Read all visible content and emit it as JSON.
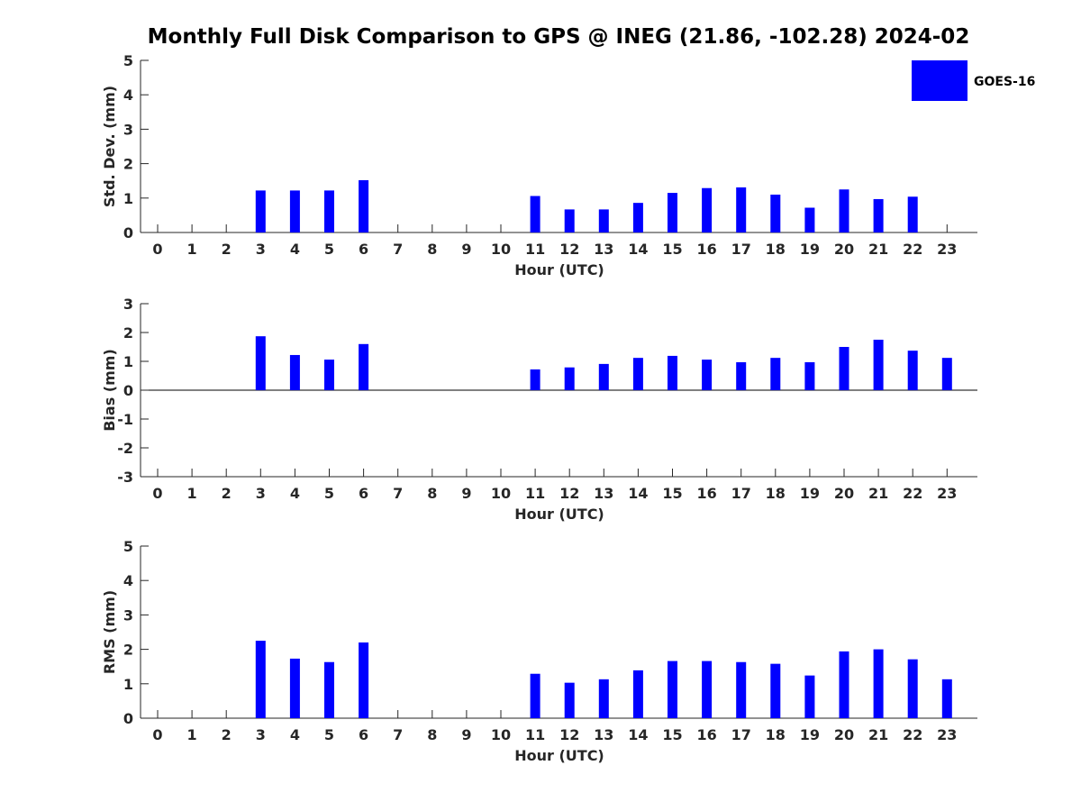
{
  "title": "Monthly Full Disk Comparison to GPS @ INEG (21.86, -102.28) 2024-02",
  "legend": {
    "label": "GOES-16",
    "color": "#0000ff"
  },
  "bar_color": "#0000ff",
  "chart_data": [
    {
      "type": "bar",
      "name": "std-dev",
      "xlabel": "Hour (UTC)",
      "ylabel": "Std. Dev. (mm)",
      "ylim": [
        0,
        5
      ],
      "yticks": [
        0,
        1,
        2,
        3,
        4,
        5
      ],
      "categories": [
        "0",
        "1",
        "2",
        "3",
        "4",
        "5",
        "6",
        "7",
        "8",
        "9",
        "10",
        "11",
        "12",
        "13",
        "14",
        "15",
        "16",
        "17",
        "18",
        "19",
        "20",
        "21",
        "22",
        "23"
      ],
      "series": [
        {
          "name": "GOES-16",
          "values": [
            null,
            null,
            null,
            1.22,
            1.22,
            1.22,
            1.52,
            null,
            null,
            null,
            null,
            1.06,
            0.67,
            0.67,
            0.86,
            1.15,
            1.29,
            1.31,
            1.1,
            0.72,
            1.25,
            0.97,
            1.04,
            null
          ]
        }
      ]
    },
    {
      "type": "bar",
      "name": "bias",
      "xlabel": "Hour (UTC)",
      "ylabel": "Bias (mm)",
      "ylim": [
        -3,
        3
      ],
      "yticks": [
        -3,
        -2,
        -1,
        0,
        1,
        2,
        3
      ],
      "zero_line": true,
      "categories": [
        "0",
        "1",
        "2",
        "3",
        "4",
        "5",
        "6",
        "7",
        "8",
        "9",
        "10",
        "11",
        "12",
        "13",
        "14",
        "15",
        "16",
        "17",
        "18",
        "19",
        "20",
        "21",
        "22",
        "23"
      ],
      "series": [
        {
          "name": "GOES-16",
          "values": [
            null,
            null,
            null,
            1.87,
            1.22,
            1.06,
            1.6,
            null,
            null,
            null,
            null,
            0.72,
            0.79,
            0.91,
            1.12,
            1.19,
            1.06,
            0.97,
            1.12,
            0.97,
            1.5,
            1.75,
            1.37,
            1.12
          ]
        }
      ]
    },
    {
      "type": "bar",
      "name": "rms",
      "xlabel": "Hour (UTC)",
      "ylabel": "RMS (mm)",
      "ylim": [
        0,
        5
      ],
      "yticks": [
        0,
        1,
        2,
        3,
        4,
        5
      ],
      "categories": [
        "0",
        "1",
        "2",
        "3",
        "4",
        "5",
        "6",
        "7",
        "8",
        "9",
        "10",
        "11",
        "12",
        "13",
        "14",
        "15",
        "16",
        "17",
        "18",
        "19",
        "20",
        "21",
        "22",
        "23"
      ],
      "series": [
        {
          "name": "GOES-16",
          "values": [
            null,
            null,
            null,
            2.25,
            1.73,
            1.63,
            2.2,
            null,
            null,
            null,
            null,
            1.29,
            1.03,
            1.13,
            1.39,
            1.66,
            1.66,
            1.63,
            1.58,
            1.24,
            1.94,
            2.0,
            1.71,
            1.13
          ]
        }
      ]
    }
  ]
}
